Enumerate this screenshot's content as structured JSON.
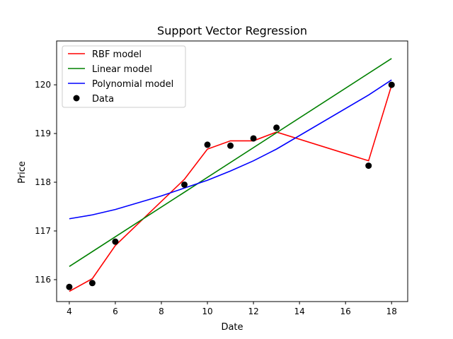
{
  "chart_data": {
    "type": "line",
    "title": "Support Vector Regression",
    "xlabel": "Date",
    "ylabel": "Price",
    "xlim": [
      3.45,
      18.7
    ],
    "ylim": [
      115.55,
      120.9
    ],
    "xticks": [
      4,
      6,
      8,
      10,
      12,
      14,
      16,
      18
    ],
    "yticks": [
      116,
      117,
      118,
      119,
      120
    ],
    "grid": false,
    "legend_position": "top-left",
    "series": [
      {
        "name": "RBF model",
        "type": "line",
        "color": "#ff0000",
        "x": [
          4,
          5,
          6,
          9,
          10,
          11,
          12,
          13,
          17,
          18
        ],
        "y": [
          115.76,
          116.02,
          116.7,
          118.06,
          118.68,
          118.85,
          118.85,
          119.03,
          118.44,
          119.99
        ]
      },
      {
        "name": "Linear model",
        "type": "line",
        "color": "#008000",
        "x": [
          4,
          18
        ],
        "y": [
          116.27,
          120.54
        ]
      },
      {
        "name": "Polynomial model",
        "type": "line",
        "color": "#0000ff",
        "x": [
          4,
          5,
          6,
          8,
          9,
          10,
          11,
          12,
          13,
          17,
          18
        ],
        "y": [
          117.25,
          117.33,
          117.44,
          117.72,
          117.88,
          118.04,
          118.23,
          118.44,
          118.68,
          119.79,
          120.1
        ]
      },
      {
        "name": "Data",
        "type": "scatter",
        "color": "#000000",
        "x": [
          4,
          5,
          6,
          9,
          10,
          11,
          12,
          13,
          17,
          18
        ],
        "y": [
          115.85,
          115.93,
          116.78,
          117.95,
          118.77,
          118.75,
          118.9,
          119.12,
          118.34,
          120.0
        ]
      }
    ]
  }
}
